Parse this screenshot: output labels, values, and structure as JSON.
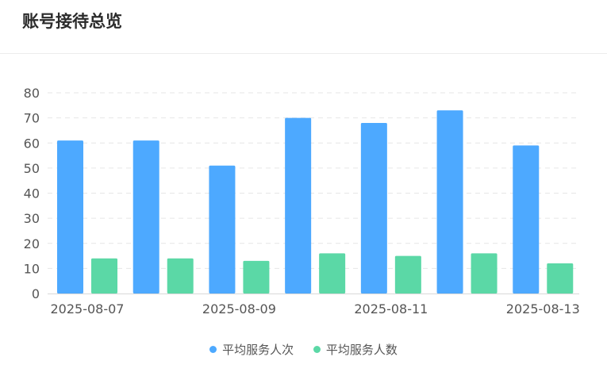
{
  "header": {
    "title": "账号接待总览"
  },
  "colors": {
    "series1": "#4da9ff",
    "series2": "#5bd8a6",
    "grid": "#e6e6e6",
    "axis_text": "#555555"
  },
  "chart_data": {
    "type": "bar",
    "categories": [
      "2025-08-07",
      "2025-08-08",
      "2025-08-09",
      "2025-08-10",
      "2025-08-11",
      "2025-08-12",
      "2025-08-13"
    ],
    "x_tick_labels_shown": [
      "2025-08-07",
      "2025-08-09",
      "2025-08-11",
      "2025-08-13"
    ],
    "series": [
      {
        "name": "平均服务人次",
        "values": [
          61,
          61,
          51,
          70,
          68,
          73,
          59
        ]
      },
      {
        "name": "平均服务人数",
        "values": [
          14,
          14,
          13,
          16,
          15,
          16,
          12
        ]
      }
    ],
    "ylim": [
      0,
      80
    ],
    "y_ticks": [
      0,
      10,
      20,
      30,
      40,
      50,
      60,
      70,
      80
    ],
    "grid": true,
    "grid_style": "dashed",
    "legend_position": "bottom-center"
  }
}
